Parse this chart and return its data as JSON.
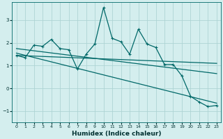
{
  "xlabel": "Humidex (Indice chaleur)",
  "background_color": "#d4eeee",
  "grid_color": "#aed4d4",
  "line_color": "#006868",
  "xlim": [
    -0.5,
    23.5
  ],
  "ylim": [
    -1.5,
    3.8
  ],
  "xticks": [
    0,
    1,
    2,
    3,
    4,
    5,
    6,
    7,
    8,
    9,
    10,
    11,
    12,
    13,
    14,
    15,
    16,
    17,
    18,
    19,
    20,
    21,
    22,
    23
  ],
  "yticks": [
    -1,
    0,
    1,
    2,
    3
  ],
  "series1_x": [
    0,
    1,
    2,
    3,
    4,
    5,
    6,
    7,
    8,
    9,
    10,
    11,
    12,
    13,
    14,
    15,
    16,
    17,
    18,
    19,
    20,
    21,
    22,
    23
  ],
  "series1_y": [
    1.45,
    1.35,
    1.9,
    1.85,
    2.15,
    1.75,
    1.7,
    0.85,
    1.5,
    1.95,
    3.55,
    2.2,
    2.05,
    1.5,
    2.6,
    1.95,
    1.8,
    1.05,
    1.05,
    0.55,
    -0.35,
    -0.6,
    -0.8,
    -0.75
  ],
  "series2_x": [
    0,
    23
  ],
  "series2_y": [
    1.75,
    0.65
  ],
  "series3_x": [
    0,
    23
  ],
  "series3_y": [
    1.55,
    -0.65
  ],
  "series4_x": [
    0,
    23
  ],
  "series4_y": [
    1.45,
    1.1
  ]
}
